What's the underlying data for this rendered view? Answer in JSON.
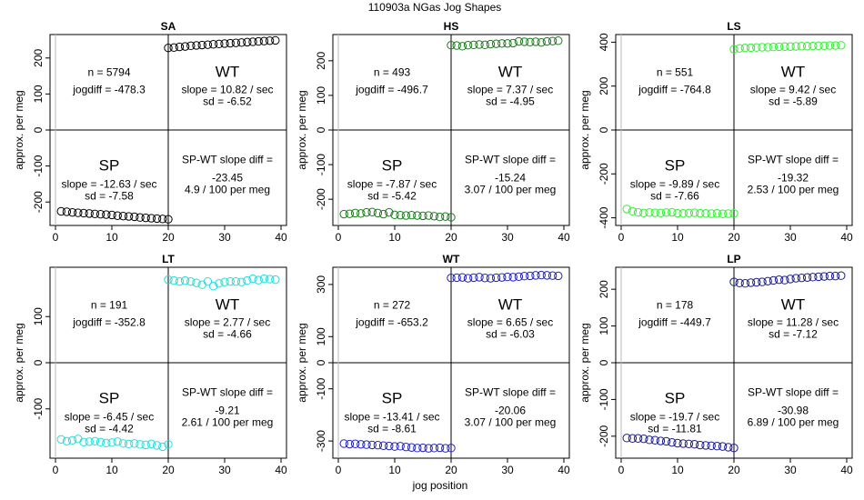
{
  "page": {
    "title": "110903a   NGas Jog Shapes",
    "xlabel": "jog position"
  },
  "chart_data": [
    {
      "type": "scatter",
      "title": "SA",
      "ylabel": "approx. per meg",
      "color": "#000000",
      "xlim": [
        0,
        40
      ],
      "ylim": [
        -250,
        250
      ],
      "yticks": [
        -200,
        -100,
        0,
        100,
        200
      ],
      "xticks": [
        0,
        10,
        20,
        30,
        40
      ],
      "n": "n = 5794",
      "jogdiff": "jogdiff = -478.3",
      "wt_label": "WT",
      "wt_slope": "slope = 10.82 / sec",
      "wt_sd": "sd = -6.52",
      "sp_label": "SP",
      "sp_slope": "slope = -12.63 / sec",
      "sp_sd": "sd = -7.58",
      "diff_label": "SP-WT slope diff =",
      "diff_value": "-23.45",
      "diff_permeg": "4.9 / 100 per meg",
      "sp_points": {
        "x": [
          1,
          2,
          3,
          4,
          5,
          6,
          7,
          8,
          9,
          10,
          11,
          12,
          13,
          14,
          15,
          16,
          17,
          18,
          19,
          20
        ],
        "y": [
          -226,
          -227,
          -229,
          -230,
          -231,
          -232,
          -233,
          -234,
          -235,
          -236,
          -238,
          -239,
          -240,
          -241,
          -243,
          -244,
          -245,
          -246,
          -247,
          -248
        ]
      },
      "wt_points": {
        "x": [
          20,
          21,
          22,
          23,
          24,
          25,
          26,
          27,
          28,
          29,
          30,
          31,
          32,
          33,
          34,
          35,
          36,
          37,
          38,
          39
        ],
        "y": [
          228,
          229,
          231,
          232,
          234,
          235,
          236,
          237,
          238,
          239,
          240,
          241,
          242,
          243,
          244,
          245,
          246,
          247,
          248,
          249
        ]
      }
    },
    {
      "type": "scatter",
      "title": "HS",
      "ylabel": "approx. per meg",
      "color": "#1a7a1a",
      "xlim": [
        0,
        40
      ],
      "ylim": [
        -260,
        260
      ],
      "yticks": [
        -200,
        -100,
        0,
        100,
        200
      ],
      "xticks": [
        0,
        10,
        20,
        30,
        40
      ],
      "n": "n = 493",
      "jogdiff": "jogdiff = -496.7",
      "wt_label": "WT",
      "wt_slope": "slope = 7.37 / sec",
      "wt_sd": "sd = -4.95",
      "sp_label": "SP",
      "sp_slope": "slope = -7.87 / sec",
      "sp_sd": "sd = -5.42",
      "diff_label": "SP-WT slope diff =",
      "diff_value": "-15.24",
      "diff_permeg": "3.07 / 100 per meg",
      "sp_points": {
        "x": [
          1,
          2,
          3,
          4,
          5,
          6,
          7,
          8,
          9,
          10,
          11,
          12,
          13,
          14,
          15,
          16,
          17,
          18,
          19,
          20
        ],
        "y": [
          -243,
          -242,
          -240,
          -241,
          -238,
          -237,
          -240,
          -243,
          -238,
          -245,
          -246,
          -247,
          -246,
          -247,
          -248,
          -247,
          -249,
          -251,
          -250,
          -252
        ]
      },
      "wt_points": {
        "x": [
          20,
          21,
          22,
          23,
          24,
          25,
          26,
          27,
          28,
          29,
          30,
          31,
          32,
          33,
          34,
          35,
          36,
          37,
          38,
          39
        ],
        "y": [
          245,
          244,
          242,
          245,
          246,
          247,
          246,
          248,
          249,
          250,
          250,
          251,
          256,
          255,
          254,
          255,
          253,
          256,
          257,
          258
        ]
      }
    },
    {
      "type": "scatter",
      "title": "LS",
      "ylabel": "approx. per meg",
      "color": "#33ee33",
      "xlim": [
        0,
        40
      ],
      "ylim": [
        -410,
        410
      ],
      "yticks": [
        -400,
        -200,
        0,
        200,
        400
      ],
      "xticks": [
        0,
        10,
        20,
        30,
        40
      ],
      "n": "n = 551",
      "jogdiff": "jogdiff = -764.8",
      "wt_label": "WT",
      "wt_slope": "slope = 9.42 / sec",
      "wt_sd": "sd = -5.89",
      "sp_label": "SP",
      "sp_slope": "slope = -9.89 / sec",
      "sp_sd": "sd = -7.66",
      "diff_label": "SP-WT slope diff =",
      "diff_value": "-19.32",
      "diff_permeg": "2.53 / 100 per meg",
      "sp_points": {
        "x": [
          1,
          2,
          3,
          4,
          5,
          6,
          7,
          8,
          9,
          10,
          11,
          12,
          13,
          14,
          15,
          16,
          17,
          18,
          19,
          20
        ],
        "y": [
          -360,
          -370,
          -375,
          -378,
          -376,
          -377,
          -378,
          -376,
          -375,
          -379,
          -380,
          -378,
          -377,
          -379,
          -380,
          -381,
          -380,
          -382,
          -381,
          -380
        ]
      },
      "wt_points": {
        "x": [
          20,
          21,
          22,
          23,
          24,
          25,
          26,
          27,
          28,
          29,
          30,
          31,
          32,
          33,
          34,
          35,
          36,
          37,
          38,
          39
        ],
        "y": [
          368,
          372,
          374,
          375,
          376,
          377,
          377,
          378,
          379,
          380,
          380,
          381,
          382,
          382,
          383,
          384,
          384,
          385,
          385,
          386
        ]
      }
    },
    {
      "type": "scatter",
      "title": "LT",
      "ylabel": "approx. per meg",
      "color": "#22dddd",
      "xlim": [
        0,
        40
      ],
      "ylim": [
        -195,
        195
      ],
      "yticks": [
        -100,
        0,
        100
      ],
      "xticks": [
        0,
        10,
        20,
        30,
        40
      ],
      "n": "n = 191",
      "jogdiff": "jogdiff = -352.8",
      "wt_label": "WT",
      "wt_slope": "slope = 2.77 / sec",
      "wt_sd": "sd = -4.66",
      "sp_label": "SP",
      "sp_slope": "slope = -6.45 / sec",
      "sp_sd": "sd = -4.42",
      "diff_label": "SP-WT slope diff =",
      "diff_value": "-9.21",
      "diff_permeg": "2.61 / 100 per meg",
      "sp_points": {
        "x": [
          1,
          2,
          3,
          4,
          5,
          6,
          7,
          8,
          9,
          10,
          11,
          12,
          13,
          14,
          15,
          16,
          17,
          18,
          19,
          20
        ],
        "y": [
          -166,
          -170,
          -168,
          -165,
          -172,
          -171,
          -170,
          -172,
          -174,
          -173,
          -171,
          -175,
          -176,
          -175,
          -177,
          -178,
          -176,
          -179,
          -182,
          -177
        ]
      },
      "wt_points": {
        "x": [
          20,
          21,
          22,
          23,
          24,
          25,
          26,
          27,
          28,
          29,
          30,
          31,
          32,
          33,
          34,
          35,
          36,
          37,
          38,
          39
        ],
        "y": [
          180,
          178,
          176,
          178,
          176,
          173,
          169,
          176,
          166,
          172,
          175,
          176,
          176,
          175,
          178,
          182,
          179,
          182,
          181,
          180
        ]
      }
    },
    {
      "type": "scatter",
      "title": "WT",
      "ylabel": "approx. per meg",
      "color": "#2222bb",
      "xlim": [
        0,
        40
      ],
      "ylim": [
        -345,
        345
      ],
      "yticks": [
        -300,
        -100,
        0,
        100,
        300
      ],
      "xticks": [
        0,
        10,
        20,
        30,
        40
      ],
      "n": "n = 272",
      "jogdiff": "jogdiff = -653.2",
      "wt_label": "WT",
      "wt_slope": "slope = 6.65 / sec",
      "wt_sd": "sd = -6.03",
      "sp_label": "SP",
      "sp_slope": "slope = -13.41 / sec",
      "sp_sd": "sd = -8.61",
      "diff_label": "SP-WT slope diff =",
      "diff_value": "-20.06",
      "diff_permeg": "3.07 / 100 per meg",
      "sp_points": {
        "x": [
          1,
          2,
          3,
          4,
          5,
          6,
          7,
          8,
          9,
          10,
          11,
          12,
          13,
          14,
          15,
          16,
          17,
          18,
          19,
          20
        ],
        "y": [
          -310,
          -312,
          -311,
          -313,
          -314,
          -315,
          -316,
          -318,
          -319,
          -321,
          -320,
          -323,
          -325,
          -327,
          -326,
          -328,
          -327,
          -326,
          -328,
          -327
        ]
      },
      "wt_points": {
        "x": [
          20,
          21,
          22,
          23,
          24,
          25,
          26,
          27,
          28,
          29,
          30,
          31,
          32,
          33,
          34,
          35,
          36,
          37,
          38,
          39
        ],
        "y": [
          325,
          326,
          327,
          324,
          326,
          328,
          325,
          324,
          326,
          327,
          329,
          328,
          330,
          332,
          333,
          335,
          336,
          335,
          334,
          333
        ]
      }
    },
    {
      "type": "scatter",
      "title": "LP",
      "ylabel": "approx. per meg",
      "color": "#1a1a88",
      "xlim": [
        0,
        40
      ],
      "ylim": [
        -245,
        245
      ],
      "yticks": [
        -200,
        -100,
        0,
        100,
        200
      ],
      "xticks": [
        0,
        10,
        20,
        30,
        40
      ],
      "n": "n = 178",
      "jogdiff": "jogdiff = -449.7",
      "wt_label": "WT",
      "wt_slope": "slope = 11.28 / sec",
      "wt_sd": "sd = -7.12",
      "sp_label": "SP",
      "sp_slope": "slope = -19.7 / sec",
      "sp_sd": "sd = -11.81",
      "diff_label": "SP-WT slope diff =",
      "diff_value": "-30.98",
      "diff_permeg": "6.89 / 100 per meg",
      "sp_points": {
        "x": [
          1,
          2,
          3,
          4,
          5,
          6,
          7,
          8,
          9,
          10,
          11,
          12,
          13,
          14,
          15,
          16,
          17,
          18,
          19,
          20
        ],
        "y": [
          -205,
          -206,
          -206,
          -207,
          -210,
          -211,
          -213,
          -214,
          -217,
          -219,
          -220,
          -221,
          -222,
          -224,
          -225,
          -226,
          -227,
          -228,
          -230,
          -232
        ]
      },
      "wt_points": {
        "x": [
          20,
          21,
          22,
          23,
          24,
          25,
          26,
          27,
          28,
          29,
          30,
          31,
          32,
          33,
          34,
          35,
          36,
          37,
          38,
          39
        ],
        "y": [
          220,
          217,
          216,
          218,
          219,
          220,
          222,
          224,
          226,
          225,
          228,
          230,
          231,
          232,
          233,
          234,
          235,
          236,
          236,
          237
        ]
      }
    }
  ]
}
